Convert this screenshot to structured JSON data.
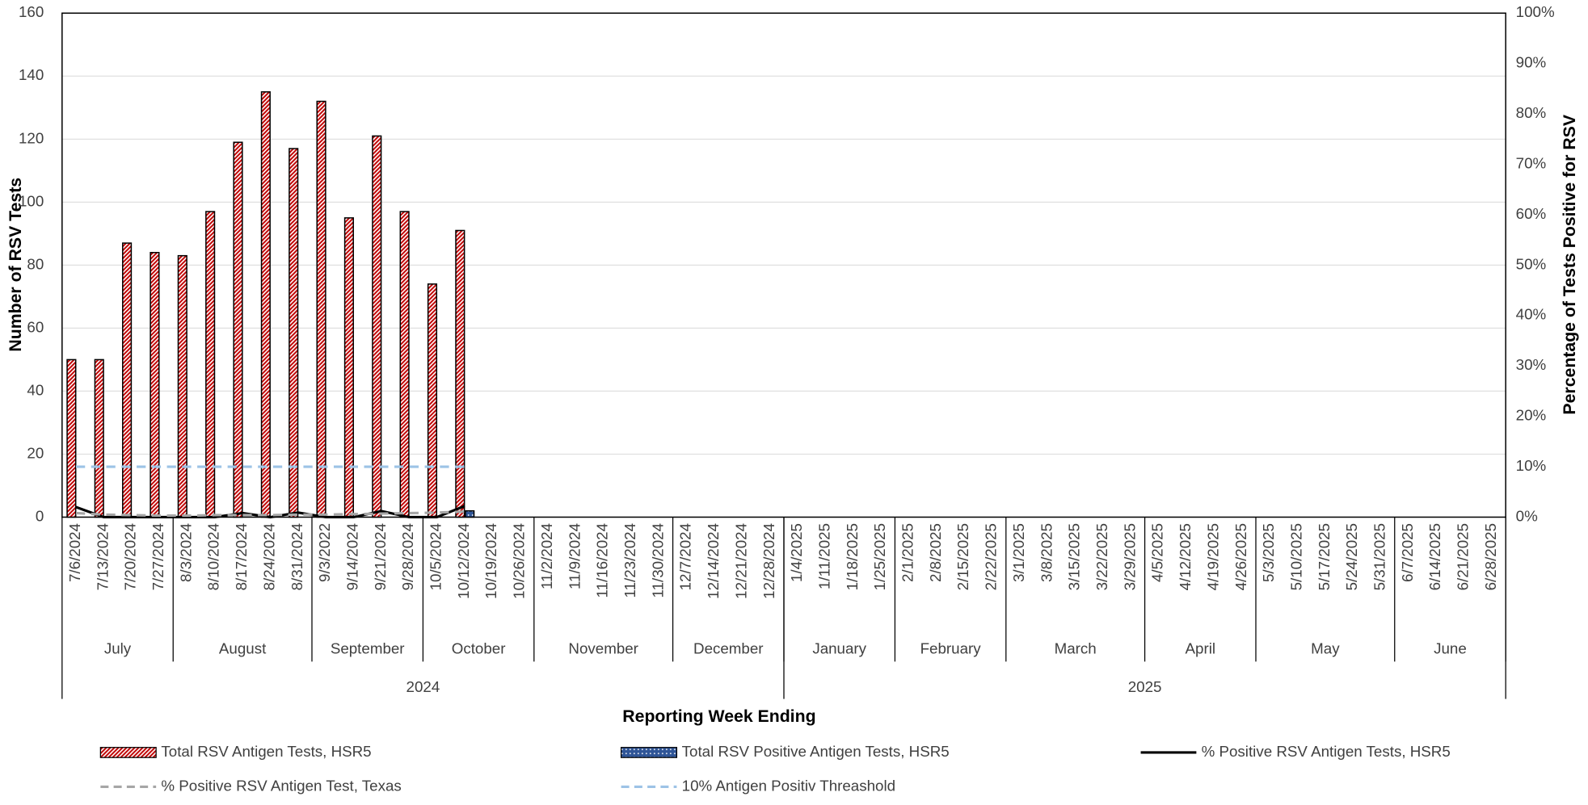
{
  "chart_data": {
    "type": "bar",
    "x_label": "Reporting Week Ending",
    "y_label": "Number of RSV Tests",
    "y2_label": "Percentage of Tests Positive for RSV",
    "categories": [
      "7/6/2024",
      "7/13/2024",
      "7/20/2024",
      "7/27/2024",
      "8/3/2024",
      "8/10/2024",
      "8/17/2024",
      "8/24/2024",
      "8/31/2024",
      "9/3/2022",
      "9/14/2024",
      "9/21/2024",
      "9/28/2024",
      "10/5/2024",
      "10/12/2024",
      "10/19/2024",
      "10/26/2024",
      "11/2/2024",
      "11/9/2024",
      "11/16/2024",
      "11/23/2024",
      "11/30/2024",
      "12/7/2024",
      "12/14/2024",
      "12/21/2024",
      "12/28/2024",
      "1/4/2025",
      "1/11/2025",
      "1/18/2025",
      "1/25/2025",
      "2/1/2025",
      "2/8/2025",
      "2/15/2025",
      "2/22/2025",
      "3/1/2025",
      "3/8/2025",
      "3/15/2025",
      "3/22/2025",
      "3/29/2025",
      "4/5/2025",
      "4/12/2025",
      "4/19/2025",
      "4/26/2025",
      "5/3/2025",
      "5/10/2025",
      "5/17/2025",
      "5/24/2025",
      "5/31/2025",
      "6/7/2025",
      "6/14/2025",
      "6/21/2025",
      "6/28/2025"
    ],
    "months": [
      {
        "name": "July",
        "weeks": 4
      },
      {
        "name": "August",
        "weeks": 5
      },
      {
        "name": "September",
        "weeks": 4
      },
      {
        "name": "October",
        "weeks": 4
      },
      {
        "name": "November",
        "weeks": 5
      },
      {
        "name": "December",
        "weeks": 4
      },
      {
        "name": "January",
        "weeks": 4
      },
      {
        "name": "February",
        "weeks": 4
      },
      {
        "name": "March",
        "weeks": 5
      },
      {
        "name": "April",
        "weeks": 4
      },
      {
        "name": "May",
        "weeks": 5
      },
      {
        "name": "June",
        "weeks": 4
      }
    ],
    "years": [
      {
        "name": "2024",
        "weeks": 26
      },
      {
        "name": "2025",
        "weeks": 26
      }
    ],
    "series": [
      {
        "name": "Total RSV Antigen Tests, HSR5",
        "type": "bar",
        "pattern": "diagonal",
        "color": "#c00000",
        "values": [
          50,
          50,
          87,
          84,
          83,
          97,
          119,
          135,
          117,
          132,
          95,
          121,
          97,
          74,
          91,
          null,
          null,
          null,
          null,
          null,
          null,
          null,
          null,
          null,
          null,
          null,
          null,
          null,
          null,
          null,
          null,
          null,
          null,
          null,
          null,
          null,
          null,
          null,
          null,
          null,
          null,
          null,
          null,
          null,
          null,
          null,
          null,
          null,
          null,
          null,
          null,
          null
        ]
      },
      {
        "name": "Total RSV Positive Antigen Tests, HSR5",
        "type": "bar",
        "pattern": "dotted",
        "color": "#2f5597",
        "values": [
          0,
          0,
          0,
          0,
          0,
          0,
          0,
          0,
          0,
          0,
          0,
          0,
          0,
          0,
          2,
          null,
          null,
          null,
          null,
          null,
          null,
          null,
          null,
          null,
          null,
          null,
          null,
          null,
          null,
          null,
          null,
          null,
          null,
          null,
          null,
          null,
          null,
          null,
          null,
          null,
          null,
          null,
          null,
          null,
          null,
          null,
          null,
          null,
          null,
          null,
          null,
          null
        ]
      },
      {
        "name": "% Positive RSV Antigen Tests, HSR5",
        "type": "line",
        "axis": "y2",
        "style": "solid",
        "color": "#000000",
        "values": [
          2,
          0,
          0,
          0,
          0,
          0,
          0.8,
          0,
          0.9,
          0,
          0,
          1.2,
          0,
          0,
          2.2,
          null,
          null,
          null,
          null,
          null,
          null,
          null,
          null,
          null,
          null,
          null,
          null,
          null,
          null,
          null,
          null,
          null,
          null,
          null,
          null,
          null,
          null,
          null,
          null,
          null,
          null,
          null,
          null,
          null,
          null,
          null,
          null,
          null,
          null,
          null,
          null,
          null
        ]
      },
      {
        "name": "% Positive RSV Antigen Test, Texas",
        "type": "line",
        "axis": "y2",
        "style": "dashed",
        "color": "#a6a6a6",
        "values": [
          0.8,
          0.5,
          0.4,
          0.3,
          0.3,
          0.4,
          0.4,
          0.4,
          0.5,
          0.5,
          0.6,
          0.7,
          0.8,
          0.9,
          1.1,
          null,
          null,
          null,
          null,
          null,
          null,
          null,
          null,
          null,
          null,
          null,
          null,
          null,
          null,
          null,
          null,
          null,
          null,
          null,
          null,
          null,
          null,
          null,
          null,
          null,
          null,
          null,
          null,
          null,
          null,
          null,
          null,
          null,
          null,
          null,
          null,
          null
        ]
      },
      {
        "name": "10% Antigen Positiv Threashold",
        "type": "line",
        "axis": "y2",
        "style": "dashed",
        "color": "#9dc3e6",
        "values": [
          10,
          10,
          10,
          10,
          10,
          10,
          10,
          10,
          10,
          10,
          10,
          10,
          10,
          10,
          10,
          null,
          null,
          null,
          null,
          null,
          null,
          null,
          null,
          null,
          null,
          null,
          null,
          null,
          null,
          null,
          null,
          null,
          null,
          null,
          null,
          null,
          null,
          null,
          null,
          null,
          null,
          null,
          null,
          null,
          null,
          null,
          null,
          null,
          null,
          null,
          null,
          null
        ]
      }
    ],
    "ylim": [
      0,
      160
    ],
    "yticks": [
      0,
      20,
      40,
      60,
      80,
      100,
      120,
      140,
      160
    ],
    "y2lim": [
      0,
      100
    ],
    "y2ticks": [
      {
        "value": 0,
        "label": "0%"
      },
      {
        "value": 10,
        "label": "10%"
      },
      {
        "value": 20,
        "label": "20%"
      },
      {
        "value": 30,
        "label": "30%"
      },
      {
        "value": 40,
        "label": "40%"
      },
      {
        "value": 50,
        "label": "50%"
      },
      {
        "value": 60,
        "label": "60%"
      },
      {
        "value": 70,
        "label": "70%"
      },
      {
        "value": 80,
        "label": "80%"
      },
      {
        "value": 90,
        "label": "90%"
      },
      {
        "value": 100,
        "label": "100%"
      }
    ],
    "grid": true,
    "legend": "bottom"
  }
}
